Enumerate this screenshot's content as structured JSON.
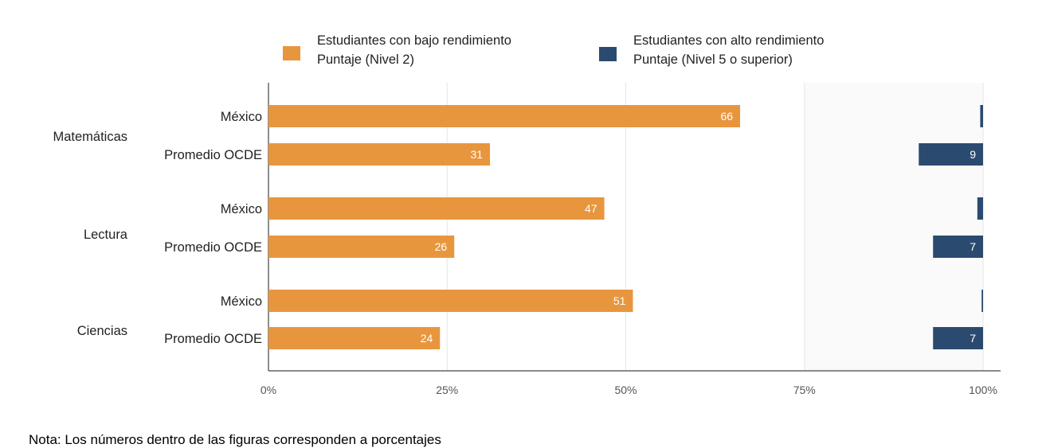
{
  "chart_data": {
    "type": "bar",
    "orientation": "horizontal",
    "groups": [
      "Matemáticas",
      "Lectura",
      "Ciencias"
    ],
    "categories": [
      "México",
      "Promedio OCDE",
      "México",
      "Promedio OCDE",
      "México",
      "Promedio  OCDE"
    ],
    "series": [
      {
        "name": "Estudiantes con bajo rendimiento Puntaje (Nivel 2)",
        "line1": "Estudiantes con bajo rendimiento",
        "line2": "Puntaje (Nivel 2)",
        "color": "#E8963E",
        "anchor": "left",
        "values": [
          66,
          31,
          47,
          26,
          51,
          24
        ],
        "labels": [
          "66",
          "31",
          "47",
          "26",
          "51",
          "24"
        ]
      },
      {
        "name": "Estudiantes con alto rendimiento Puntaje (Nivel 5 o superior)",
        "line1": "Estudiantes con alto rendimiento",
        "line2": "Puntaje (Nivel 5 o superior)",
        "color": "#2B4A6F",
        "anchor": "right",
        "values": [
          0.4,
          9,
          0.8,
          7,
          0.2,
          7
        ],
        "labels": [
          "",
          "9",
          "",
          "7",
          "",
          "7"
        ]
      }
    ],
    "xlim": [
      0,
      100
    ],
    "xticks": [
      "0%",
      "25%",
      "50%",
      "75%",
      "100%"
    ],
    "grid": true,
    "legend": "top"
  },
  "note": "Nota: Los números dentro de las figuras corresponden a porcentajes"
}
